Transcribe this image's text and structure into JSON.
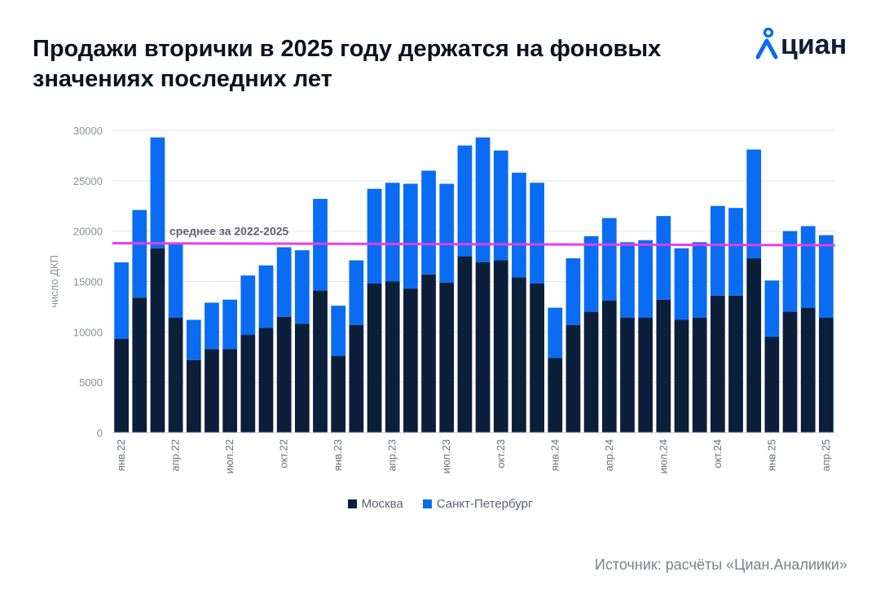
{
  "title": "Продажи вторички в 2025 году держатся на фоновых значениях последних лет",
  "logo": {
    "text": "циан",
    "icon": "location-pin-person-icon",
    "color": "#0b1f3a",
    "accent": "#0a6cf2"
  },
  "source": "Источник: расчёты «Циан.Аналиики»",
  "colors": {
    "moscow": "#0b1f3a",
    "spb": "#0a6cf2",
    "average": "#e63ef2"
  },
  "chart_data": {
    "type": "bar",
    "stacked": true,
    "ylabel": "число ДКП",
    "ylim": [
      0,
      30000
    ],
    "yticks": [
      0,
      5000,
      10000,
      15000,
      20000,
      25000,
      30000
    ],
    "grid": true,
    "legend_position": "bottom",
    "categories": [
      "янв.22",
      "фев.22",
      "мар.22",
      "апр.22",
      "май.22",
      "июн.22",
      "июл.22",
      "авг.22",
      "сен.22",
      "окт.22",
      "ноя.22",
      "дек.22",
      "янв.23",
      "фев.23",
      "мар.23",
      "апр.23",
      "май.23",
      "июн.23",
      "июл.23",
      "авг.23",
      "сен.23",
      "окт.23",
      "ноя.23",
      "дек.23",
      "янв.24",
      "фев.24",
      "мар.24",
      "апр.24",
      "май.24",
      "июн.24",
      "июл.24",
      "авг.24",
      "сен.24",
      "окт.24",
      "ноя.24",
      "дек.24",
      "янв.25",
      "фев.25",
      "мар.25",
      "апр.25"
    ],
    "x_tick_labels": [
      "янв.22",
      "апр.22",
      "июл.22",
      "окт.22",
      "янв.23",
      "апр.23",
      "июл.23",
      "окт.23",
      "янв.24",
      "апр.24",
      "июл.24",
      "окт.24",
      "янв.25",
      "апр.25"
    ],
    "series": [
      {
        "name": "Москва",
        "values": [
          9300,
          13400,
          18300,
          11400,
          7200,
          8300,
          8300,
          9700,
          10400,
          11500,
          10800,
          14100,
          7600,
          10700,
          14800,
          15000,
          14300,
          15700,
          14900,
          17500,
          16900,
          17100,
          15400,
          14800,
          7400,
          10700,
          12000,
          13100,
          11400,
          11400,
          13200,
          11200,
          11400,
          13600,
          13600,
          17300,
          9500,
          12000,
          12400,
          11400
        ]
      },
      {
        "name": "Санкт-Петербург",
        "values": [
          7600,
          8700,
          11000,
          7400,
          4000,
          4600,
          4900,
          5900,
          6200,
          6900,
          7300,
          9100,
          5000,
          6400,
          9400,
          9800,
          10400,
          10300,
          9800,
          11000,
          12400,
          10900,
          10400,
          10000,
          5000,
          6600,
          7500,
          8200,
          7500,
          7700,
          8300,
          7100,
          7500,
          8900,
          8700,
          10800,
          5600,
          8000,
          8100,
          8200
        ]
      }
    ],
    "average": {
      "label": "среднее за 2022-2025",
      "start": 18800,
      "end": 18600
    }
  }
}
